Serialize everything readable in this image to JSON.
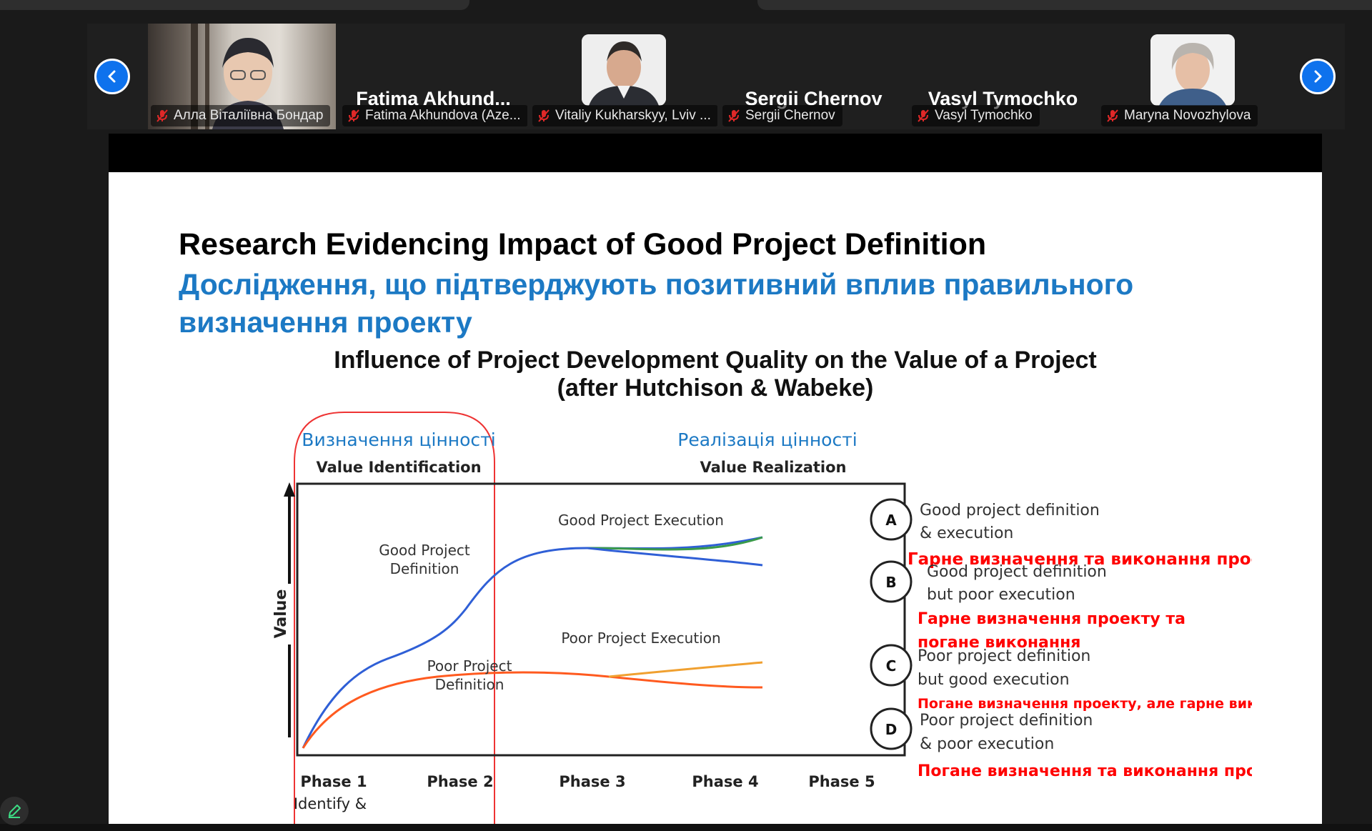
{
  "participants": [
    {
      "id": "p1",
      "display_name": "",
      "label": "Алла Віталіївна Бондар",
      "muted": true,
      "has_video": true
    },
    {
      "id": "p2",
      "display_name": "Fatima  Akhund...",
      "label": "Fatima Akhundova (Aze...",
      "muted": true,
      "has_video": false
    },
    {
      "id": "p3",
      "display_name": "",
      "label": "Vitaliy Kukharskyy, Lviv ...",
      "muted": true,
      "has_video": true
    },
    {
      "id": "p4",
      "display_name": "Sergii Chernov",
      "label": "Sergii Chernov",
      "muted": true,
      "has_video": false
    },
    {
      "id": "p5",
      "display_name": "Vasyl Tymochko",
      "label": "Vasyl Tymochko",
      "muted": true,
      "has_video": false
    },
    {
      "id": "p6",
      "display_name": "",
      "label": "Maryna Novozhylova",
      "muted": true,
      "has_video": true
    }
  ],
  "icons": {
    "prev": "chevron-left-icon",
    "next": "chevron-right-icon",
    "mic": "mic-muted-icon",
    "edit": "pencil-icon"
  },
  "colors": {
    "accent": "#0e72ed",
    "mute_red": "#e02828",
    "title_blue": "#1c79c4",
    "alert_red": "#ff0000"
  },
  "slide": {
    "title_en": "Research Evidencing Impact of Good Project Definition",
    "title_ua": "Дослідження, що підтверджують позитивний вплив правильного визначення проекту",
    "chart_title_line1": "Influence of Project Development Quality on the Value of a Project",
    "chart_title_line2": "(after Hutchison & Wabeke)"
  },
  "chart_data": {
    "type": "line",
    "ylabel": "Value",
    "header_left_ua": "Визначення цінності",
    "header_left_en": "Value Identification",
    "header_right_ua": "Реалізація цінності",
    "header_right_en": "Value Realization",
    "categories": [
      "Phase 1",
      "Phase 2",
      "Phase 3",
      "Phase 4",
      "Phase 5"
    ],
    "phase1_sublabel": "Identify &",
    "curve_labels": {
      "good_def": [
        "Good Project",
        "Definition"
      ],
      "poor_def": [
        "Poor Project",
        "Definition"
      ],
      "good_exec": "Good Project Execution",
      "poor_exec": "Poor Project Execution"
    },
    "outcomes": [
      {
        "marker": "A",
        "en1": "Good project definition",
        "en2": "& execution",
        "ua1": "Гарне визначення та виконання проекту",
        "ua2": ""
      },
      {
        "marker": "B",
        "en1": "Good project definition",
        "en2": "but poor execution",
        "ua1": "Гарне визначення проекту та",
        "ua2": "погане виконання"
      },
      {
        "marker": "C",
        "en1": "Poor project definition",
        "en2": "but  good execution",
        "ua1": "Погане визначення проекту, але гарне виконання",
        "ua2": ""
      },
      {
        "marker": "D",
        "en1": "Poor project definition",
        "en2": "&  poor execution",
        "ua1": "Погане визначення та виконання проекту",
        "ua2": ""
      }
    ]
  }
}
